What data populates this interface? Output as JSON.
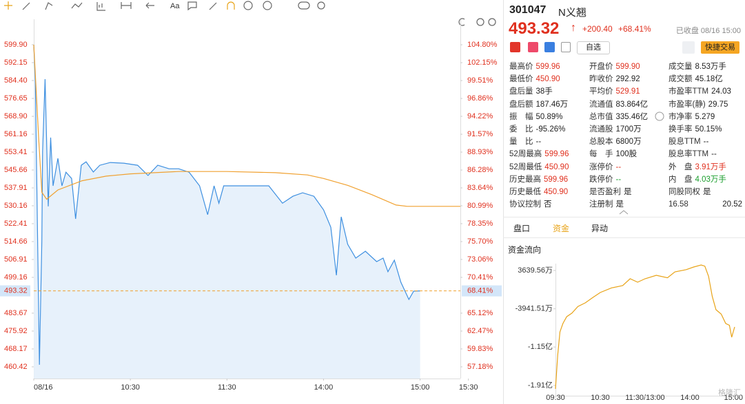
{
  "toolbar": {
    "font_button": "Aa"
  },
  "quote": {
    "code": "301047",
    "name": "N义翘",
    "price": "493.32",
    "arrow": "↑",
    "change": "+200.40",
    "change_pct": "+68.41%",
    "status": "已收盘 08/16 15:00",
    "watchlist": "自选",
    "trade": "快捷交易"
  },
  "stats": {
    "columns": [
      [
        {
          "label": "最高价",
          "value": "599.96",
          "color": "#e0301e"
        },
        {
          "label": "最低价",
          "value": "450.90",
          "color": "#e0301e"
        },
        {
          "label": "盘后量",
          "value": "38手"
        },
        {
          "label": "盘后额",
          "value": "187.46万"
        },
        {
          "label": "振　幅",
          "value": "50.89%"
        },
        {
          "label": "委　比",
          "value": "-95.26%"
        },
        {
          "label": "量　比",
          "value": "--"
        },
        {
          "label": "52周最高",
          "value": "599.96",
          "color": "#e0301e"
        },
        {
          "label": "52周最低",
          "value": "450.90",
          "color": "#e0301e"
        },
        {
          "label": "历史最高",
          "value": "599.96",
          "color": "#e0301e"
        },
        {
          "label": "历史最低",
          "value": "450.90",
          "color": "#e0301e"
        },
        {
          "label": "协议控制",
          "value": "否"
        }
      ],
      [
        {
          "label": "开盘价",
          "value": "599.90",
          "color": "#e0301e"
        },
        {
          "label": "昨收价",
          "value": "292.92"
        },
        {
          "label": "平均价",
          "value": "529.91",
          "color": "#e0301e"
        },
        {
          "label": "流通值",
          "value": "83.864亿"
        },
        {
          "label": "总市值",
          "value": "335.46亿"
        },
        {
          "label": "流通股",
          "value": "1700万"
        },
        {
          "label": "总股本",
          "value": "6800万"
        },
        {
          "label": "每　手",
          "value": "100股"
        },
        {
          "label": "涨停价",
          "value": "--",
          "color": "#e0301e"
        },
        {
          "label": "跌停价",
          "value": "--",
          "color": "#1a9e2c"
        },
        {
          "label": "是否盈利",
          "value": "是"
        },
        {
          "label": "注册制",
          "value": "是"
        }
      ],
      [
        {
          "label": "成交量",
          "value": "8.53万手"
        },
        {
          "label": "成交额",
          "value": "45.18亿"
        },
        {
          "label": "市盈率TTM",
          "value": "24.03"
        },
        {
          "label": "市盈率(静)",
          "value": "29.75"
        },
        {
          "label": "市净率",
          "value": "5.279"
        },
        {
          "label": "换手率",
          "value": "50.15%"
        },
        {
          "label": "股息TTM",
          "value": "--"
        },
        {
          "label": "股息率TTM",
          "value": "--"
        },
        {
          "label": "外　盘",
          "value": "3.91万手",
          "color": "#e0301e"
        },
        {
          "label": "内　盘",
          "value": "4.03万手",
          "color": "#1a9e2c"
        },
        {
          "label": "同股同权",
          "value": "是"
        },
        {
          "label": "16.58",
          "value": "20.52"
        }
      ]
    ]
  },
  "tabs": [
    "盘口",
    "资金",
    "异动"
  ],
  "active_tab": 1,
  "watermark": "格隆汇",
  "chart_data": [
    {
      "type": "line",
      "series": [
        {
          "color": "#3d8fe0",
          "fill": "#e4effb",
          "x": [
            0,
            1,
            3.5,
            5,
            5.5,
            7,
            9,
            10.5,
            12,
            15,
            17.5,
            20,
            23.5,
            26,
            29.5,
            32.5,
            37,
            41,
            47.5,
            56,
            64.5,
            71,
            77,
            84,
            90,
            96.5,
            103,
            108,
            112,
            115,
            118,
            122,
            129,
            137.5,
            146,
            154.5,
            161,
            167,
            174,
            180,
            184.5,
            188,
            191,
            195,
            200,
            206,
            213,
            217,
            220,
            224,
            228,
            233,
            236,
            240
          ],
          "values": [
            599.9,
            583.5,
            461.3,
            515,
            553.7,
            585,
            529.9,
            559.7,
            538.8,
            550.7,
            538.8,
            544.7,
            542,
            524.5,
            547.7,
            549.2,
            544.8,
            547.7,
            548.9,
            548.6,
            547.7,
            543.3,
            547.7,
            546.2,
            546.2,
            544.7,
            538.8,
            526.3,
            538.8,
            531.3,
            538.8,
            538.8,
            538.8,
            538.8,
            538.8,
            531.3,
            534.3,
            535.8,
            534.3,
            528.4,
            520.9,
            500.1,
            525.4,
            513.5,
            507.5,
            510.5,
            506,
            507.5,
            501.6,
            506.6,
            497.1,
            489.6,
            493.2,
            493.32
          ]
        },
        {
          "color": "#f0a02e",
          "x": [
            0,
            3,
            5,
            8,
            15,
            30,
            45,
            60,
            90,
            120,
            150,
            170,
            180,
            195,
            210,
            225,
            232,
            265
          ],
          "values": [
            599.9,
            560,
            536,
            533,
            537,
            541,
            543,
            544,
            545,
            545,
            544.5,
            543.5,
            542,
            539,
            535,
            530.5,
            529.91,
            529.91
          ]
        }
      ],
      "xlim": [
        0,
        265
      ],
      "xticks": [
        {
          "value": 0,
          "label": "08/16"
        },
        {
          "value": 60,
          "label": "10:30"
        },
        {
          "value": 120,
          "label": "11:30"
        },
        {
          "value": 180,
          "label": "14:00"
        },
        {
          "value": 240,
          "label": "15:00"
        },
        {
          "value": 270,
          "label": "15:30"
        }
      ],
      "ylim": [
        455.35,
        610.93
      ],
      "yticks": [
        {
          "value": 599.9,
          "label": "599.90"
        },
        592.15,
        {
          "value": 584.4,
          "label": "584.40"
        },
        576.65,
        {
          "value": 568.9,
          "label": "568.90"
        },
        561.16,
        553.41,
        545.66,
        537.91,
        530.16,
        522.41,
        514.66,
        506.91,
        499.16,
        483.67,
        475.92,
        468.17,
        460.42
      ],
      "y2lim": [
        55.45,
        108.57
      ],
      "y2ticks": [
        {
          "value": 104.8,
          "label": "104.80%"
        },
        {
          "value": 102.15,
          "label": "102.15%"
        },
        {
          "value": 99.51,
          "label": "99.51%"
        },
        {
          "value": 96.86,
          "label": "96.86%"
        },
        {
          "value": 94.22,
          "label": "94.22%"
        },
        {
          "value": 91.57,
          "label": "91.57%"
        },
        {
          "value": 88.93,
          "label": "88.93%"
        },
        {
          "value": 86.28,
          "label": "86.28%"
        },
        {
          "value": 83.64,
          "label": "83.64%"
        },
        {
          "value": 80.99,
          "label": "80.99%"
        },
        {
          "value": 78.35,
          "label": "78.35%"
        },
        {
          "value": 75.7,
          "label": "75.70%"
        },
        {
          "value": 73.06,
          "label": "73.06%"
        },
        {
          "value": 70.41,
          "label": "70.41%"
        },
        {
          "value": 65.12,
          "label": "65.12%"
        },
        {
          "value": 62.47,
          "label": "62.47%"
        },
        {
          "value": 59.83,
          "label": "59.83%"
        },
        {
          "value": 57.18,
          "label": "57.18%"
        }
      ],
      "last": {
        "value": 493.32,
        "label": "493.32"
      },
      "last_pct": {
        "value": 68.41,
        "label": "68.41%"
      },
      "marker_color": "#f0a02e"
    },
    {
      "type": "line",
      "title": "资金流向",
      "series": [
        {
          "color": "#e8a317",
          "x": [
            0,
            3,
            6,
            10,
            15,
            22,
            30,
            40,
            50,
            60,
            75,
            90,
            100,
            110,
            120,
            135,
            150,
            160,
            175,
            185,
            195,
            200,
            205,
            210,
            215,
            222,
            228,
            233,
            236,
            240
          ],
          "values": [
            -19787,
            -13000,
            -8500,
            -6848,
            -5500,
            -4805,
            -3500,
            -2762,
            -1700,
            -719,
            200,
            643,
            2000,
            1324,
            2005,
            2686,
            2200,
            3367,
            3800,
            4320,
            4729,
            4500,
            2500,
            -1500,
            -4124,
            -5000,
            -6848,
            -7200,
            -9571,
            -7529
          ]
        }
      ],
      "xlim": [
        0,
        240
      ],
      "xticks": [
        {
          "value": 0,
          "label": "09:30"
        },
        {
          "value": 60,
          "label": "10:30"
        },
        {
          "value": 120,
          "label": "11:30/13:00"
        },
        {
          "value": 180,
          "label": "14:00"
        },
        {
          "value": 240,
          "label": "15:00"
        }
      ],
      "ylim": [
        -21143,
        5001
      ],
      "yticks": [
        {
          "value": 3639.56,
          "label": "3639.56万"
        },
        {
          "value": -3941.51,
          "label": "-3941.51万"
        },
        {
          "value": -11500,
          "label": "-1.15亿"
        },
        {
          "value": -19100,
          "label": "-1.91亿"
        }
      ]
    }
  ]
}
